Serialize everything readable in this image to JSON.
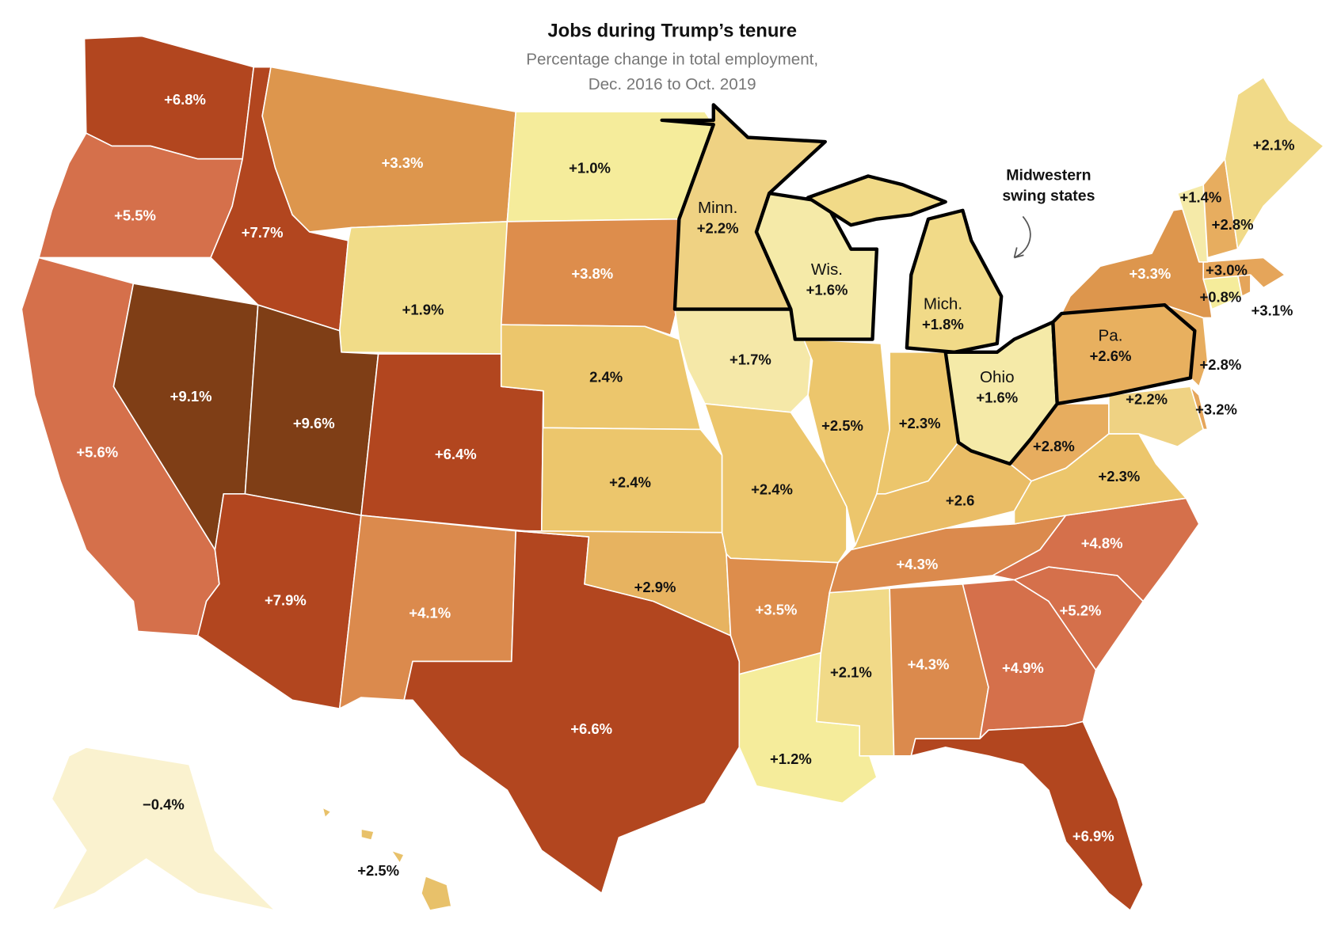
{
  "map": {
    "title": "Jobs during Trump’s tenure",
    "subtitle": [
      "Percentage change in total employment,",
      "Dec. 2016 to Oct. 2019"
    ],
    "annotation": [
      "Midwestern",
      "swing states"
    ],
    "states": [
      {
        "value": 6.8,
        "label": "+6.8%",
        "color": "#b2461f"
      },
      {
        "value": 5.5,
        "label": "+5.5%",
        "color": "#d5704b"
      },
      {
        "value": 5.6,
        "label": "+5.6%",
        "color": "#d5704b"
      },
      {
        "value": 9.1,
        "label": "+9.1%",
        "color": "#7f3e16"
      },
      {
        "value": 7.7,
        "label": "+7.7%",
        "color": "#b2461f"
      },
      {
        "value": 3.3,
        "label": "+3.3%",
        "color": "#dd964d"
      },
      {
        "value": 1.9,
        "label": "+1.9%",
        "color": "#f1dc88"
      },
      {
        "value": 9.6,
        "label": "+9.6%",
        "color": "#7f3e16"
      },
      {
        "value": 6.4,
        "label": "+6.4%",
        "color": "#b2461f"
      },
      {
        "value": 7.9,
        "label": "+7.9%",
        "color": "#b2461f"
      },
      {
        "value": 4.1,
        "label": "+4.1%",
        "color": "#db8a4d"
      },
      {
        "value": 6.6,
        "label": "+6.6%",
        "color": "#b2461f"
      },
      {
        "value": 1.0,
        "label": "+1.0%",
        "color": "#f5ec9b"
      },
      {
        "value": 3.8,
        "label": "+3.8%",
        "color": "#dd8d4c"
      },
      {
        "value": 2.4,
        "label": "2.4%",
        "color": "#ecc66c"
      },
      {
        "value": 2.4,
        "label": "+2.4%",
        "color": "#ecc66c"
      },
      {
        "value": 2.9,
        "label": "+2.9%",
        "color": "#e7b360"
      },
      {
        "name": "Minn.",
        "value": 2.2,
        "label": "+2.2%",
        "color": "#efd283"
      },
      {
        "value": 1.7,
        "label": "+1.7%",
        "color": "#f5e8a8"
      },
      {
        "value": 2.4,
        "label": "+2.4%",
        "color": "#ecc66c"
      },
      {
        "value": 3.5,
        "label": "+3.5%",
        "color": "#dd8d4c"
      },
      {
        "value": 1.2,
        "label": "+1.2%",
        "color": "#f5ec9b"
      },
      {
        "name": "Wis.",
        "value": 1.6,
        "label": "+1.6%",
        "color": "#f5eaa8"
      },
      {
        "value": 2.5,
        "label": "+2.5%",
        "color": "#ecc66c"
      },
      {
        "name": "Mich.",
        "value": 1.8,
        "label": "+1.8%",
        "color": "#f1da88"
      },
      {
        "value": 2.3,
        "label": "+2.3%",
        "color": "#ecc66c"
      },
      {
        "name": "Ohio",
        "value": 1.6,
        "label": "+1.6%",
        "color": "#f5eaa8"
      },
      {
        "value": 2.6,
        "label": "+2.6",
        "color": "#eabd66"
      },
      {
        "value": 4.3,
        "label": "+4.3%",
        "color": "#db8a4d"
      },
      {
        "value": 2.1,
        "label": "+2.1%",
        "color": "#f1da88"
      },
      {
        "value": 4.3,
        "label": "+4.3%",
        "color": "#db8a4d"
      },
      {
        "value": 4.9,
        "label": "+4.9%",
        "color": "#d5704b"
      },
      {
        "value": 6.9,
        "label": "+6.9%",
        "color": "#b2461f"
      },
      {
        "value": 5.2,
        "label": "+5.2%",
        "color": "#d5704b"
      },
      {
        "value": 4.8,
        "label": "+4.8%",
        "color": "#d5704b"
      },
      {
        "value": 2.3,
        "label": "+2.3%",
        "color": "#ecc66c"
      },
      {
        "value": 2.8,
        "label": "+2.8%",
        "color": "#e7ad5f"
      },
      {
        "name": "Pa.",
        "value": 2.6,
        "label": "+2.6%",
        "color": "#e8b05f"
      },
      {
        "value": 2.2,
        "label": "+2.2%",
        "color": "#efd283"
      },
      {
        "value": 3.2,
        "label": "+3.2%",
        "color": "#e5a55a"
      },
      {
        "value": 2.8,
        "label": "+2.8%",
        "color": "#e7ad5f"
      },
      {
        "value": 3.3,
        "label": "+3.3%",
        "color": "#dd964d"
      },
      {
        "value": 0.8,
        "label": "+0.8%",
        "color": "#f5ec9b"
      },
      {
        "value": 3.1,
        "label": "+3.1%",
        "color": "#e5a55a"
      },
      {
        "value": 3.0,
        "label": "+3.0%",
        "color": "#e5a55a"
      },
      {
        "value": 1.4,
        "label": "+1.4%",
        "color": "#f5eaa8"
      },
      {
        "value": 2.8,
        "label": "+2.8%",
        "color": "#e7ad5f"
      },
      {
        "value": 2.1,
        "label": "+2.1%",
        "color": "#f1da88"
      },
      {
        "value": -0.4,
        "label": "−0.4%",
        "color": "#faf2cf"
      },
      {
        "value": 2.5,
        "label": "+2.5%",
        "color": "#e8c16a"
      }
    ]
  }
}
